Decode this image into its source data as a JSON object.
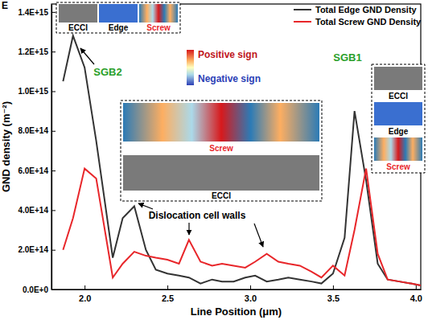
{
  "chart_data": {
    "type": "line",
    "panel_label": "E",
    "x_label": "Line Position (μm)",
    "y_label": "GND density (m⁻²)",
    "x": [
      1.87,
      1.93,
      2.0,
      2.07,
      2.17,
      2.23,
      2.3,
      2.37,
      2.43,
      2.5,
      2.57,
      2.63,
      2.7,
      2.77,
      2.83,
      2.9,
      2.97,
      3.03,
      3.1,
      3.17,
      3.23,
      3.3,
      3.37,
      3.43,
      3.5,
      3.57,
      3.63,
      3.7,
      3.77,
      3.83,
      3.9,
      3.97,
      4.03
    ],
    "series": [
      {
        "name": "Total Edge GND Density",
        "color": "#333333",
        "values": [
          1050000000000000.0,
          1280000000000000.0,
          1120000000000000.0,
          750000000000000.0,
          160000000000000.0,
          360000000000000.0,
          420000000000000.0,
          200000000000000.0,
          100000000000000.0,
          80000000000000.0,
          70000000000000.0,
          60000000000000.0,
          30000000000000.0,
          50000000000000.0,
          40000000000000.0,
          40000000000000.0,
          60000000000000.0,
          70000000000000.0,
          40000000000000.0,
          50000000000000.0,
          60000000000000.0,
          50000000000000.0,
          40000000000000.0,
          30000000000000.0,
          80000000000000.0,
          260000000000000.0,
          900000000000000.0,
          550000000000000.0,
          130000000000000.0,
          50000000000000.0,
          40000000000000.0,
          30000000000000.0,
          20000000000000.0
        ]
      },
      {
        "name": "Total Screw GND Density",
        "color": "#e8262a",
        "values": [
          200000000000000.0,
          360000000000000.0,
          610000000000000.0,
          560000000000000.0,
          60000000000000.0,
          130000000000000.0,
          190000000000000.0,
          170000000000000.0,
          160000000000000.0,
          150000000000000.0,
          130000000000000.0,
          250000000000000.0,
          140000000000000.0,
          120000000000000.0,
          130000000000000.0,
          120000000000000.0,
          110000000000000.0,
          140000000000000.0,
          180000000000000.0,
          140000000000000.0,
          130000000000000.0,
          120000000000000.0,
          90000000000000.0,
          60000000000000.0,
          120000000000000.0,
          70000000000000.0,
          300000000000000.0,
          610000000000000.0,
          180000000000000.0,
          50000000000000.0,
          40000000000000.0,
          30000000000000.0,
          20000000000000.0
        ]
      }
    ],
    "xlim": [
      1.8,
      4.03
    ],
    "ylim": [
      0,
      1440000000000000.0
    ],
    "xticks": [
      {
        "value": 2,
        "label": "2.0"
      },
      2.5,
      {
        "value": 3,
        "label": "3.0"
      },
      3.5,
      {
        "value": 4,
        "label": "4.0"
      }
    ],
    "yticks": [
      {
        "value": 0,
        "label": "0.0E+0"
      },
      {
        "value": 200000000000000.0,
        "label": "2.0E+14"
      },
      {
        "value": 400000000000000.0,
        "label": "4.0E+14"
      },
      {
        "value": 600000000000000.0,
        "label": "6.0E+14"
      },
      {
        "value": 800000000000000.0,
        "label": "8.0E+14"
      },
      {
        "value": 1000000000000000.0,
        "label": "1.0E+15"
      },
      {
        "value": 1200000000000000.0,
        "label": "1.2E+15"
      },
      {
        "value": 1400000000000000.0,
        "label": "1.4E+15"
      }
    ],
    "legend": "upper right",
    "grid": false,
    "annotations": [
      {
        "text": "SGB2"
      },
      {
        "text": "SGB1"
      },
      {
        "text": "Dislocation cell walls"
      }
    ],
    "insets": [
      {
        "labels": [
          "ECCI",
          "Edge",
          "Screw"
        ]
      },
      {
        "labels": [
          "Screw",
          "ECCI"
        ]
      },
      {
        "labels": [
          "ECCI",
          "Edge",
          "Screw"
        ]
      }
    ],
    "sign_scale": {
      "labels": [
        "Positive sign",
        "Negative sign"
      ]
    }
  }
}
